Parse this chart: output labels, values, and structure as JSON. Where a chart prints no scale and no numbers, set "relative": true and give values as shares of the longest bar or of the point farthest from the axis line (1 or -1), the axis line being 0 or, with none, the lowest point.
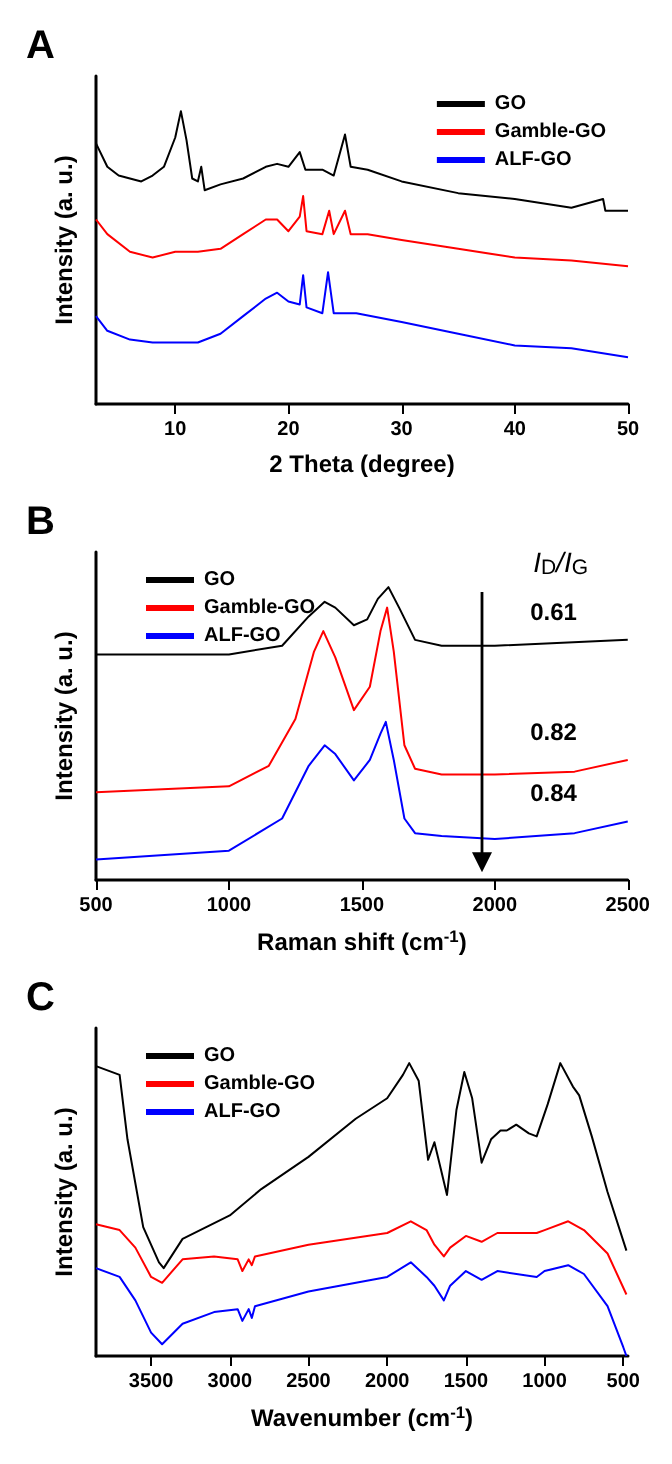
{
  "chart_data": [
    {
      "type": "line",
      "title": "A",
      "xlabel": "2 Theta (degree)",
      "ylabel": "Intensity (a. u.)",
      "relative": true,
      "xlim": [
        3,
        50
      ],
      "xticks": [
        10,
        20,
        30,
        40,
        50
      ],
      "grid": false,
      "legend": "top right",
      "series": [
        {
          "name": "GO",
          "color": "#000000",
          "x": [
            3,
            4,
            5,
            6,
            7,
            8,
            9,
            10,
            10.5,
            11,
            11.5,
            12,
            12.3,
            12.6,
            14,
            16,
            18,
            19,
            20,
            21,
            21.5,
            23,
            24,
            25,
            25.5,
            27,
            30,
            35,
            40,
            45,
            47.8,
            48,
            50
          ],
          "values": [
            0.89,
            0.81,
            0.78,
            0.77,
            0.76,
            0.78,
            0.81,
            0.91,
            1.0,
            0.9,
            0.77,
            0.76,
            0.81,
            0.73,
            0.75,
            0.77,
            0.81,
            0.82,
            0.81,
            0.86,
            0.8,
            0.8,
            0.78,
            0.92,
            0.81,
            0.8,
            0.76,
            0.72,
            0.7,
            0.67,
            0.7,
            0.66,
            0.66
          ]
        },
        {
          "name": "Gamble-GO",
          "color": "#ff0000",
          "x": [
            3,
            4,
            6,
            8,
            10,
            12,
            14,
            16,
            18,
            19,
            20,
            21,
            21.3,
            21.6,
            23,
            23.6,
            24,
            25,
            25.5,
            27,
            30,
            35,
            40,
            45,
            50
          ],
          "values": [
            0.63,
            0.58,
            0.52,
            0.5,
            0.52,
            0.52,
            0.53,
            0.58,
            0.63,
            0.63,
            0.59,
            0.64,
            0.71,
            0.59,
            0.58,
            0.66,
            0.58,
            0.66,
            0.58,
            0.58,
            0.56,
            0.53,
            0.5,
            0.49,
            0.47
          ]
        },
        {
          "name": "ALF-GO",
          "color": "#0000ff",
          "x": [
            3,
            4,
            6,
            8,
            10,
            12,
            14,
            16,
            18,
            19,
            20,
            21,
            21.3,
            21.6,
            23,
            23.5,
            24,
            26,
            30,
            35,
            40,
            45,
            50
          ],
          "values": [
            0.3,
            0.25,
            0.22,
            0.21,
            0.21,
            0.21,
            0.24,
            0.3,
            0.36,
            0.38,
            0.35,
            0.34,
            0.44,
            0.33,
            0.31,
            0.45,
            0.31,
            0.31,
            0.28,
            0.24,
            0.2,
            0.19,
            0.16
          ]
        }
      ]
    },
    {
      "type": "line",
      "title": "B",
      "xlabel": "Raman shift (cm$^{-1}$)",
      "ylabel": "Intensity (a. u.)",
      "relative": true,
      "xlim": [
        500,
        2500
      ],
      "xticks": [
        500,
        1000,
        1500,
        2000,
        2500
      ],
      "grid": false,
      "legend": "top left",
      "annotations": [
        "I$_{D}$/I$_{G}$",
        "0.61",
        "0.82",
        "0.84"
      ],
      "series": [
        {
          "name": "GO",
          "color": "#000000",
          "x": [
            500,
            1000,
            1200,
            1300,
            1360,
            1400,
            1470,
            1520,
            1560,
            1600,
            1640,
            1700,
            1800,
            2000,
            2500
          ],
          "values": [
            0.77,
            0.77,
            0.8,
            0.9,
            0.95,
            0.93,
            0.87,
            0.89,
            0.96,
            1.0,
            0.93,
            0.82,
            0.8,
            0.8,
            0.82
          ]
        },
        {
          "name": "Gamble-GO",
          "color": "#ff0000",
          "x": [
            500,
            1000,
            1150,
            1250,
            1320,
            1355,
            1400,
            1470,
            1530,
            1570,
            1595,
            1620,
            1660,
            1700,
            1800,
            2000,
            2300,
            2500
          ],
          "values": [
            0.3,
            0.32,
            0.39,
            0.55,
            0.78,
            0.85,
            0.76,
            0.58,
            0.66,
            0.85,
            0.93,
            0.78,
            0.46,
            0.38,
            0.36,
            0.36,
            0.37,
            0.41
          ]
        },
        {
          "name": "ALF-GO",
          "color": "#0000ff",
          "x": [
            500,
            1000,
            1200,
            1300,
            1360,
            1400,
            1470,
            1530,
            1570,
            1590,
            1620,
            1660,
            1700,
            1800,
            2000,
            2300,
            2500
          ],
          "values": [
            0.07,
            0.1,
            0.21,
            0.39,
            0.46,
            0.43,
            0.34,
            0.41,
            0.5,
            0.54,
            0.41,
            0.21,
            0.16,
            0.15,
            0.14,
            0.16,
            0.2
          ]
        }
      ]
    },
    {
      "type": "line",
      "title": "C",
      "xlabel": "Wavenumber (cm$^{-1}$)",
      "ylabel": "Intensity (a. u.)",
      "relative": true,
      "xlim": [
        3850,
        470
      ],
      "xticks": [
        3500,
        3000,
        2500,
        2000,
        1500,
        1000,
        500
      ],
      "grid": false,
      "legend": "top left",
      "series": [
        {
          "name": "GO",
          "color": "#000000",
          "x": [
            3850,
            3700,
            3650,
            3550,
            3450,
            3420,
            3300,
            3000,
            2800,
            2500,
            2200,
            2000,
            1900,
            1860,
            1800,
            1740,
            1700,
            1660,
            1620,
            1560,
            1510,
            1460,
            1400,
            1340,
            1280,
            1240,
            1180,
            1100,
            1050,
            980,
            900,
            820,
            780,
            700,
            600,
            480
          ],
          "values": [
            0.99,
            0.96,
            0.74,
            0.44,
            0.32,
            0.3,
            0.4,
            0.48,
            0.57,
            0.68,
            0.81,
            0.88,
            0.96,
            1.0,
            0.94,
            0.67,
            0.73,
            0.64,
            0.55,
            0.84,
            0.97,
            0.88,
            0.66,
            0.74,
            0.77,
            0.77,
            0.79,
            0.76,
            0.75,
            0.86,
            1.0,
            0.92,
            0.89,
            0.75,
            0.56,
            0.36
          ]
        },
        {
          "name": "Gamble-GO",
          "color": "#ff0000",
          "x": [
            3850,
            3700,
            3600,
            3500,
            3430,
            3300,
            3100,
            2950,
            2920,
            2880,
            2860,
            2840,
            2500,
            2000,
            1850,
            1750,
            1700,
            1640,
            1600,
            1500,
            1400,
            1300,
            1050,
            1000,
            850,
            750,
            600,
            480
          ],
          "values": [
            0.45,
            0.43,
            0.37,
            0.27,
            0.25,
            0.33,
            0.34,
            0.33,
            0.29,
            0.33,
            0.31,
            0.34,
            0.38,
            0.42,
            0.46,
            0.43,
            0.38,
            0.34,
            0.37,
            0.41,
            0.39,
            0.42,
            0.42,
            0.43,
            0.46,
            0.43,
            0.35,
            0.21
          ]
        },
        {
          "name": "ALF-GO",
          "color": "#0000ff",
          "x": [
            3850,
            3700,
            3600,
            3500,
            3430,
            3300,
            3100,
            2950,
            2920,
            2880,
            2860,
            2840,
            2500,
            2000,
            1850,
            1750,
            1700,
            1640,
            1600,
            1500,
            1400,
            1300,
            1050,
            1000,
            850,
            750,
            600,
            500,
            480
          ],
          "values": [
            0.3,
            0.27,
            0.19,
            0.08,
            0.04,
            0.11,
            0.15,
            0.16,
            0.12,
            0.16,
            0.13,
            0.17,
            0.22,
            0.27,
            0.32,
            0.27,
            0.24,
            0.19,
            0.24,
            0.29,
            0.26,
            0.29,
            0.27,
            0.29,
            0.31,
            0.28,
            0.17,
            0.03,
            0
          ]
        }
      ]
    }
  ]
}
